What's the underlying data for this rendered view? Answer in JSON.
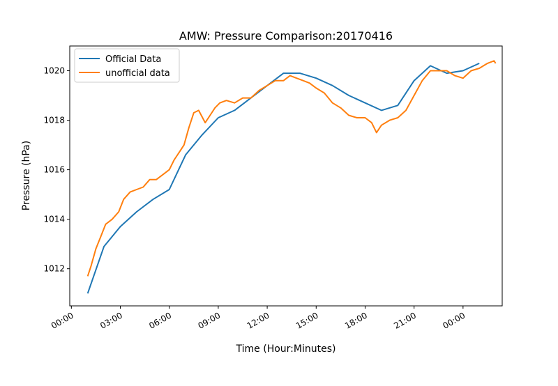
{
  "chart_data": {
    "type": "line",
    "title": "AMW: Pressure Comparison:20170416",
    "xlabel": "Time (Hour:Minutes)",
    "ylabel": "Pressure (hPa)",
    "x_tick_labels": [
      "00:00",
      "03:00",
      "06:00",
      "09:00",
      "12:00",
      "15:00",
      "18:00",
      "21:00",
      "00:00"
    ],
    "y_ticks": [
      1012,
      1014,
      1016,
      1018,
      1020
    ],
    "xlim_hours": [
      -0.1,
      26.4
    ],
    "ylim": [
      1010.5,
      1021.0
    ],
    "grid": false,
    "legend_position": "upper-left",
    "series": [
      {
        "name": "Official Data",
        "color": "#1f77b4",
        "points": [
          [
            1.0,
            1011.0
          ],
          [
            2.0,
            1012.9
          ],
          [
            3.0,
            1013.7
          ],
          [
            4.0,
            1014.3
          ],
          [
            5.0,
            1014.8
          ],
          [
            6.0,
            1015.2
          ],
          [
            7.0,
            1016.6
          ],
          [
            8.0,
            1017.4
          ],
          [
            9.0,
            1018.1
          ],
          [
            10.0,
            1018.4
          ],
          [
            11.0,
            1018.9
          ],
          [
            12.0,
            1019.4
          ],
          [
            13.0,
            1019.9
          ],
          [
            14.0,
            1019.9
          ],
          [
            15.0,
            1019.7
          ],
          [
            16.0,
            1019.4
          ],
          [
            17.0,
            1019.0
          ],
          [
            18.0,
            1018.7
          ],
          [
            19.0,
            1018.4
          ],
          [
            20.0,
            1018.6
          ],
          [
            21.0,
            1019.6
          ],
          [
            22.0,
            1020.2
          ],
          [
            23.0,
            1019.9
          ],
          [
            24.0,
            1020.0
          ],
          [
            25.0,
            1020.3
          ]
        ]
      },
      {
        "name": "unofficial data",
        "color": "#ff7f0e",
        "points": [
          [
            1.0,
            1011.7
          ],
          [
            1.2,
            1012.1
          ],
          [
            1.5,
            1012.8
          ],
          [
            1.8,
            1013.3
          ],
          [
            2.1,
            1013.8
          ],
          [
            2.5,
            1014.0
          ],
          [
            2.9,
            1014.3
          ],
          [
            3.2,
            1014.8
          ],
          [
            3.6,
            1015.1
          ],
          [
            4.0,
            1015.2
          ],
          [
            4.4,
            1015.3
          ],
          [
            4.8,
            1015.6
          ],
          [
            5.2,
            1015.6
          ],
          [
            5.6,
            1015.8
          ],
          [
            6.0,
            1016.0
          ],
          [
            6.3,
            1016.4
          ],
          [
            6.6,
            1016.7
          ],
          [
            6.9,
            1017.0
          ],
          [
            7.2,
            1017.7
          ],
          [
            7.5,
            1018.3
          ],
          [
            7.8,
            1018.4
          ],
          [
            8.2,
            1017.9
          ],
          [
            8.5,
            1018.2
          ],
          [
            8.8,
            1018.5
          ],
          [
            9.1,
            1018.7
          ],
          [
            9.5,
            1018.8
          ],
          [
            10.0,
            1018.7
          ],
          [
            10.5,
            1018.9
          ],
          [
            11.0,
            1018.9
          ],
          [
            11.5,
            1019.2
          ],
          [
            12.0,
            1019.4
          ],
          [
            12.5,
            1019.6
          ],
          [
            13.0,
            1019.6
          ],
          [
            13.4,
            1019.8
          ],
          [
            13.8,
            1019.7
          ],
          [
            14.2,
            1019.6
          ],
          [
            14.6,
            1019.5
          ],
          [
            15.0,
            1019.3
          ],
          [
            15.5,
            1019.1
          ],
          [
            16.0,
            1018.7
          ],
          [
            16.5,
            1018.5
          ],
          [
            17.0,
            1018.2
          ],
          [
            17.5,
            1018.1
          ],
          [
            18.0,
            1018.1
          ],
          [
            18.4,
            1017.9
          ],
          [
            18.7,
            1017.5
          ],
          [
            19.0,
            1017.8
          ],
          [
            19.5,
            1018.0
          ],
          [
            20.0,
            1018.1
          ],
          [
            20.5,
            1018.4
          ],
          [
            21.0,
            1019.0
          ],
          [
            21.5,
            1019.6
          ],
          [
            22.0,
            1020.0
          ],
          [
            22.5,
            1020.0
          ],
          [
            23.0,
            1020.0
          ],
          [
            23.5,
            1019.8
          ],
          [
            24.0,
            1019.7
          ],
          [
            24.5,
            1020.0
          ],
          [
            25.0,
            1020.1
          ],
          [
            25.5,
            1020.3
          ],
          [
            25.9,
            1020.4
          ],
          [
            26.0,
            1020.3
          ]
        ]
      }
    ]
  }
}
